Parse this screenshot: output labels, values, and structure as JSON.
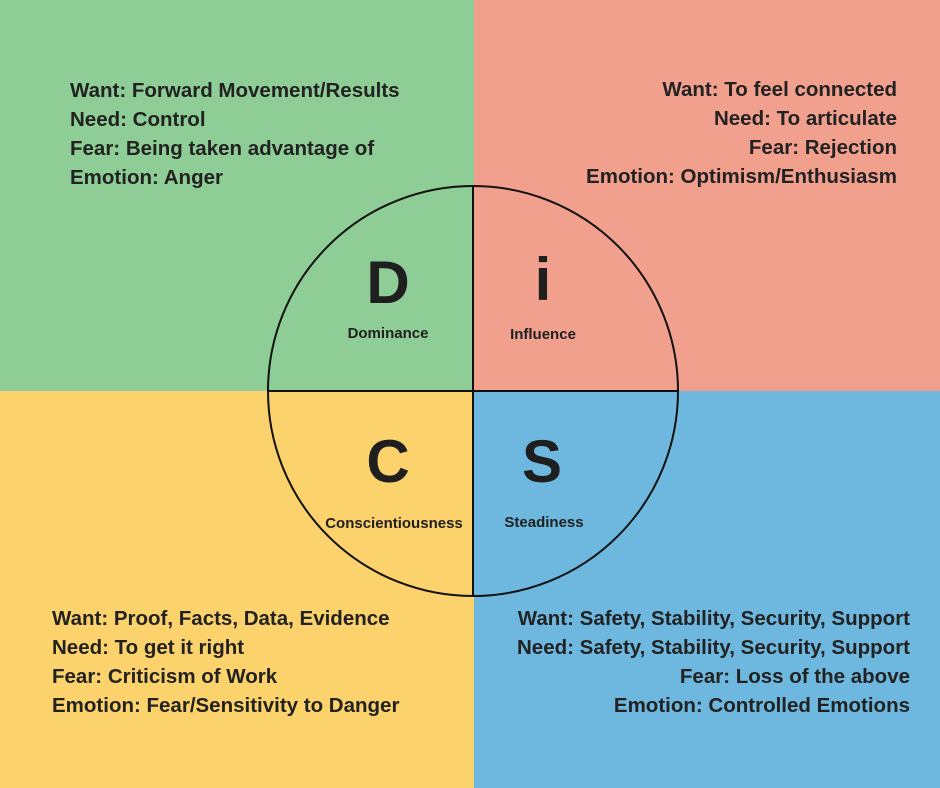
{
  "colors": {
    "dominance": "#8ecd95",
    "influence": "#f2a08e",
    "conscientiousness": "#fbd26b",
    "steadiness": "#6eb8e0",
    "text": "#222222"
  },
  "wheel": {
    "d": {
      "letter": "D",
      "label": "Dominance"
    },
    "i": {
      "letter": "i",
      "label": "Influence"
    },
    "c": {
      "letter": "C",
      "label": "Conscientiousness"
    },
    "s": {
      "letter": "S",
      "label": "Steadiness"
    }
  },
  "quadrants": {
    "dominance": {
      "want": "Want: Forward Movement/Results",
      "need": "Need: Control",
      "fear": "Fear: Being taken advantage of",
      "emotion": "Emotion: Anger"
    },
    "influence": {
      "want": "Want: To feel connected",
      "need": "Need: To articulate",
      "fear": "Fear: Rejection",
      "emotion": "Emotion: Optimism/Enthusiasm"
    },
    "conscientiousness": {
      "want": "Want: Proof, Facts, Data, Evidence",
      "need": "Need: To get it right",
      "fear": "Fear: Criticism of Work",
      "emotion": "Emotion: Fear/Sensitivity to Danger"
    },
    "steadiness": {
      "want": "Want: Safety, Stability, Security, Support",
      "need": "Need: Safety, Stability, Security, Support",
      "fear": "Fear: Loss of the above",
      "emotion": "Emotion: Controlled Emotions"
    }
  }
}
